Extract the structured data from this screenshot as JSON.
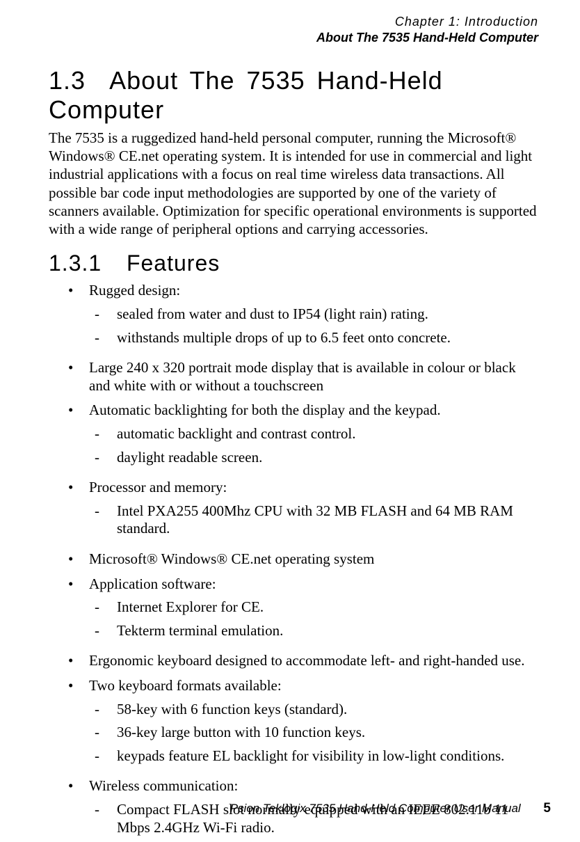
{
  "header": {
    "chapter": "Chapter 1: Introduction",
    "subtitle": "About The 7535 Hand-Held Computer"
  },
  "section": {
    "number": "1.3",
    "title": "About The 7535 Hand-Held Computer",
    "intro": "The 7535 is a ruggedized hand-held personal computer, running the Microsoft® Windows® CE.net operating system. It is intended for use in commercial and light industrial applications with a focus on real time wireless data transactions. All possible bar code input methodologies are supported by one of the variety of scanners available. Optimization for specific operational environments is supported with a wide range of peripheral options and carrying accessories."
  },
  "subsection": {
    "number": "1.3.1",
    "title": "Features"
  },
  "features": [
    {
      "text": "Rugged design:",
      "sub": [
        "sealed from water and dust to IP54 (light rain) rating.",
        "withstands multiple drops of up to 6.5 feet onto concrete."
      ]
    },
    {
      "text": "Large 240 x 320 portrait mode display that is available in colour or black and white with or without a touchscreen",
      "sub": []
    },
    {
      "text": "Automatic backlighting for both the display and the keypad.",
      "sub": [
        "automatic backlight and contrast control.",
        "daylight readable screen."
      ]
    },
    {
      "text": "Processor and memory:",
      "sub": [
        "Intel PXA255 400Mhz CPU with 32 MB FLASH and 64 MB RAM standard."
      ]
    },
    {
      "text": "Microsoft® Windows® CE.net operating system",
      "sub": []
    },
    {
      "text": "Application software:",
      "sub": [
        "Internet Explorer for CE.",
        "Tekterm terminal emulation."
      ]
    },
    {
      "text": "Ergonomic keyboard designed to accommodate left- and right-handed use.",
      "sub": []
    },
    {
      "text": "Two keyboard formats available:",
      "sub": [
        "58-key with 6 function keys (standard).",
        "36-key large button with 10 function keys.",
        "keypads feature EL backlight for visibility in low-light conditions."
      ]
    },
    {
      "text": "Wireless communication:",
      "sub": [
        "Compact FLASH slot normally equipped with an IEEE 802.11b 11 Mbps 2.4GHz Wi-Fi radio."
      ]
    }
  ],
  "footer": {
    "text": "Psion Teklogix 7535 Hand-Held Computer User Manual",
    "page": "5"
  },
  "glyphs": {
    "bullet": "•",
    "dash": "-"
  }
}
